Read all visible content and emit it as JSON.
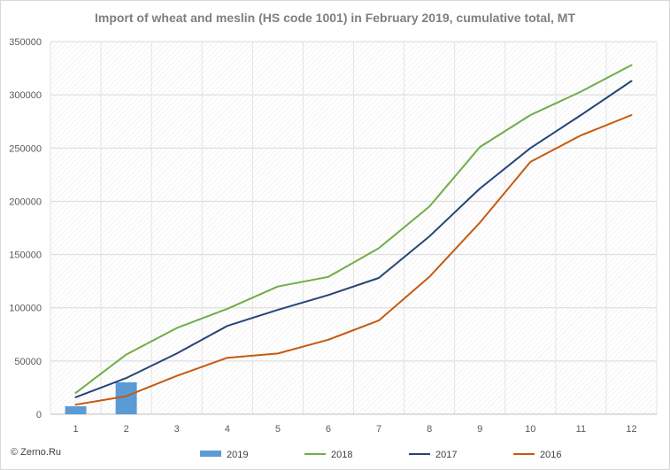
{
  "credit": "© Zerno.Ru",
  "chart_data": {
    "type": "line",
    "title": "Import of wheat and meslin (HS code 1001) in February 2019, cumulative total, MT",
    "xlabel": "",
    "ylabel": "",
    "categories": [
      "1",
      "2",
      "3",
      "4",
      "5",
      "6",
      "7",
      "8",
      "9",
      "10",
      "11",
      "12"
    ],
    "ylim": [
      0,
      350000
    ],
    "yticks": [
      "0",
      "50000",
      "100000",
      "150000",
      "200000",
      "250000",
      "300000",
      "350000"
    ],
    "grid": true,
    "legend_position": "bottom",
    "series": [
      {
        "name": "2019",
        "kind": "bar",
        "color": "#5b9bd5",
        "values": [
          7500,
          30000,
          null,
          null,
          null,
          null,
          null,
          null,
          null,
          null,
          null,
          null
        ]
      },
      {
        "name": "2018",
        "kind": "line",
        "color": "#70ad47",
        "values": [
          20000,
          56000,
          81000,
          99000,
          120000,
          129000,
          156000,
          195000,
          251000,
          281000,
          303000,
          328000
        ]
      },
      {
        "name": "2017",
        "kind": "line",
        "color": "#264478",
        "values": [
          16000,
          34000,
          57000,
          83000,
          98000,
          112000,
          128000,
          167000,
          212000,
          250000,
          281000,
          313000
        ]
      },
      {
        "name": "2016",
        "kind": "line",
        "color": "#c55a11",
        "values": [
          9000,
          17000,
          36000,
          53000,
          57000,
          70000,
          88000,
          129000,
          180000,
          237000,
          262000,
          281000
        ]
      }
    ]
  }
}
